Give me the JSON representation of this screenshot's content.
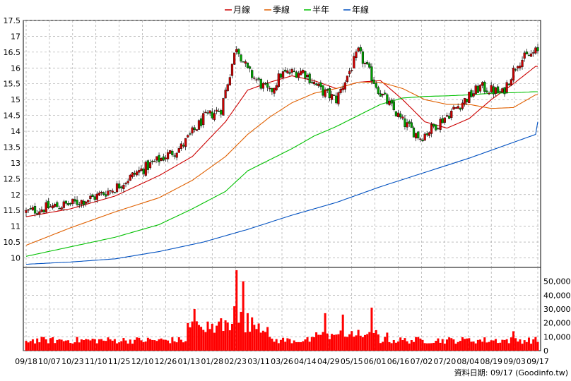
{
  "legend": {
    "placement": "top-center",
    "items": [
      {
        "label": "月線",
        "color": "#cc0000"
      },
      {
        "label": "季線",
        "color": "#e06000"
      },
      {
        "label": "半年",
        "color": "#00c000"
      },
      {
        "label": "年線",
        "color": "#0050c0"
      }
    ]
  },
  "source_label": "資料日期: 09/17  (Goodinfo.tw)",
  "chart_data": [
    {
      "type": "candlestick",
      "panel": "price",
      "ylim": [
        9.7,
        17.5
      ],
      "y_ticks": [
        10,
        10.5,
        11,
        11.5,
        12,
        12.5,
        13,
        13.5,
        14,
        14.5,
        15,
        15.5,
        16,
        16.5,
        17,
        17.5
      ],
      "grid": true,
      "up_color": "#cc0000",
      "down_color": "#00a000",
      "x_tick_labels": [
        "09/18",
        "10/07",
        "10/23",
        "11/10",
        "11/25",
        "12/10",
        "12/26",
        "01/13",
        "01/28",
        "02/23",
        "03/11",
        "03/26",
        "04/14",
        "04/29",
        "05/15",
        "06/01",
        "06/16",
        "07/02",
        "07/20",
        "08/04",
        "08/19",
        "09/03",
        "09/17"
      ],
      "close_anchors": [
        [
          0,
          11.45
        ],
        [
          10,
          11.6
        ],
        [
          20,
          11.7
        ],
        [
          30,
          11.9
        ],
        [
          40,
          12.2
        ],
        [
          50,
          12.7
        ],
        [
          60,
          13.1
        ],
        [
          70,
          13.5
        ],
        [
          80,
          14.4
        ],
        [
          88,
          14.7
        ],
        [
          95,
          16.7
        ],
        [
          100,
          15.9
        ],
        [
          110,
          15.2
        ],
        [
          115,
          15.8
        ],
        [
          125,
          15.9
        ],
        [
          133,
          15.3
        ],
        [
          140,
          15.0
        ],
        [
          150,
          16.5
        ],
        [
          160,
          15.2
        ],
        [
          170,
          14.3
        ],
        [
          178,
          13.8
        ],
        [
          185,
          14.2
        ],
        [
          195,
          14.8
        ],
        [
          205,
          15.4
        ],
        [
          215,
          15.2
        ],
        [
          222,
          16.2
        ],
        [
          230,
          16.5
        ]
      ],
      "series": [
        {
          "name": "月線",
          "points": [
            [
              0,
              11.3
            ],
            [
              20,
              11.55
            ],
            [
              40,
              11.95
            ],
            [
              60,
              12.6
            ],
            [
              75,
              13.2
            ],
            [
              90,
              14.3
            ],
            [
              100,
              15.3
            ],
            [
              110,
              15.55
            ],
            [
              120,
              15.75
            ],
            [
              130,
              15.6
            ],
            [
              140,
              15.35
            ],
            [
              150,
              15.55
            ],
            [
              160,
              15.6
            ],
            [
              170,
              15.0
            ],
            [
              180,
              14.3
            ],
            [
              190,
              14.1
            ],
            [
              200,
              14.4
            ],
            [
              210,
              15.0
            ],
            [
              220,
              15.5
            ],
            [
              230,
              16.05
            ]
          ]
        },
        {
          "name": "季線",
          "points": [
            [
              0,
              10.4
            ],
            [
              20,
              10.95
            ],
            [
              40,
              11.45
            ],
            [
              60,
              11.9
            ],
            [
              75,
              12.45
            ],
            [
              90,
              13.2
            ],
            [
              100,
              13.9
            ],
            [
              110,
              14.45
            ],
            [
              120,
              14.9
            ],
            [
              130,
              15.2
            ],
            [
              140,
              15.35
            ],
            [
              150,
              15.55
            ],
            [
              160,
              15.55
            ],
            [
              170,
              15.35
            ],
            [
              180,
              15.0
            ],
            [
              190,
              14.85
            ],
            [
              200,
              14.85
            ],
            [
              210,
              14.72
            ],
            [
              220,
              14.75
            ],
            [
              230,
              15.15
            ]
          ]
        },
        {
          "name": "半年",
          "points": [
            [
              0,
              10.05
            ],
            [
              20,
              10.35
            ],
            [
              40,
              10.65
            ],
            [
              60,
              11.05
            ],
            [
              75,
              11.55
            ],
            [
              90,
              12.1
            ],
            [
              100,
              12.75
            ],
            [
              110,
              13.1
            ],
            [
              120,
              13.45
            ],
            [
              130,
              13.85
            ],
            [
              140,
              14.15
            ],
            [
              150,
              14.5
            ],
            [
              160,
              14.85
            ],
            [
              170,
              15.05
            ],
            [
              180,
              15.1
            ],
            [
              190,
              15.12
            ],
            [
              200,
              15.15
            ],
            [
              210,
              15.2
            ],
            [
              220,
              15.22
            ],
            [
              230,
              15.25
            ]
          ]
        },
        {
          "name": "年線",
          "points": [
            [
              0,
              9.8
            ],
            [
              20,
              9.87
            ],
            [
              40,
              9.97
            ],
            [
              60,
              10.2
            ],
            [
              80,
              10.5
            ],
            [
              100,
              10.9
            ],
            [
              120,
              11.35
            ],
            [
              140,
              11.75
            ],
            [
              160,
              12.25
            ],
            [
              180,
              12.7
            ],
            [
              200,
              13.15
            ],
            [
              220,
              13.65
            ],
            [
              230,
              13.9
            ],
            [
              231,
              14.3
            ]
          ]
        }
      ]
    },
    {
      "type": "bar",
      "panel": "volume",
      "ylim": [
        0,
        60000
      ],
      "y_ticks": [
        0,
        10000,
        20000,
        30000,
        40000,
        50000
      ],
      "y_tick_labels": [
        "0",
        "10,000",
        "20,000",
        "30,000",
        "40,000",
        "50,000"
      ],
      "color": "#ff0000",
      "spikes": [
        [
          76,
          30000
        ],
        [
          80,
          15000
        ],
        [
          86,
          18000
        ],
        [
          94,
          32000
        ],
        [
          95,
          58000
        ],
        [
          97,
          28000
        ],
        [
          98,
          50000
        ],
        [
          100,
          27000
        ],
        [
          102,
          24000
        ],
        [
          135,
          27000
        ],
        [
          143,
          26000
        ],
        [
          156,
          31000
        ],
        [
          163,
          13000
        ],
        [
          200,
          9000
        ],
        [
          220,
          14000
        ]
      ]
    }
  ]
}
